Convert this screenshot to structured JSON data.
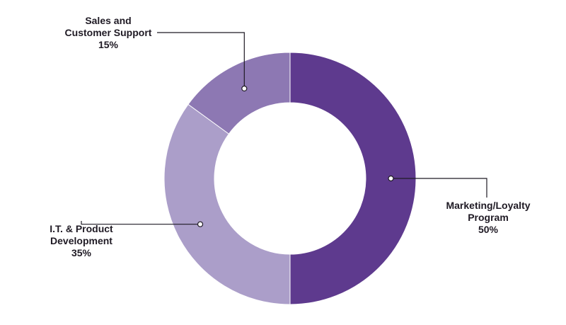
{
  "chart_data": {
    "type": "pie",
    "variant": "donut",
    "title": "",
    "slices": [
      {
        "name": "Marketing/Loyalty Program",
        "label_lines": [
          "Marketing/Loyalty",
          "Program"
        ],
        "value": 50,
        "value_label": "50%",
        "color": "#5e3a8e"
      },
      {
        "name": "I.T. & Product Development",
        "label_lines": [
          "I.T. & Product",
          "Development"
        ],
        "value": 35,
        "value_label": "35%",
        "color": "#ab9ec9"
      },
      {
        "name": "Sales and Customer Support",
        "label_lines": [
          "Sales and",
          "Customer Support"
        ],
        "value": 15,
        "value_label": "15%",
        "color": "#8d78b3"
      }
    ]
  }
}
